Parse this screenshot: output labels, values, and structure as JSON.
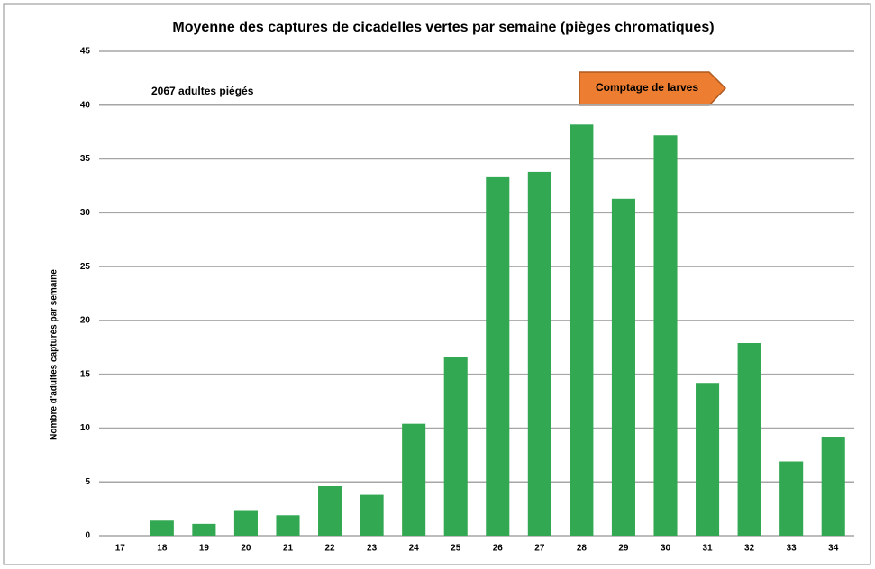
{
  "chart_data": {
    "type": "bar",
    "title": "Moyenne des captures de cicadelles vertes par semaine (pièges chromatiques)",
    "y_label": "Nombre d'adultes capturés par semaine",
    "annotations": [
      "2067 adultes piégés",
      "Comptage de larves"
    ],
    "categories": [
      "17",
      "18",
      "19",
      "20",
      "21",
      "22",
      "23",
      "24",
      "25",
      "26",
      "27",
      "28",
      "29",
      "30",
      "31",
      "32",
      "33",
      "34"
    ],
    "values": [
      0,
      1.4,
      1.1,
      2.3,
      1.9,
      4.6,
      3.8,
      10.4,
      16.6,
      33.3,
      33.8,
      38.2,
      31.3,
      37.2,
      14.2,
      17.9,
      6.9,
      9.2
    ],
    "color": "#33a852",
    "ylim": [
      0,
      45
    ],
    "yticks": [
      0,
      5,
      10,
      15,
      20,
      25,
      30,
      35,
      40,
      45
    ],
    "grid": true
  }
}
